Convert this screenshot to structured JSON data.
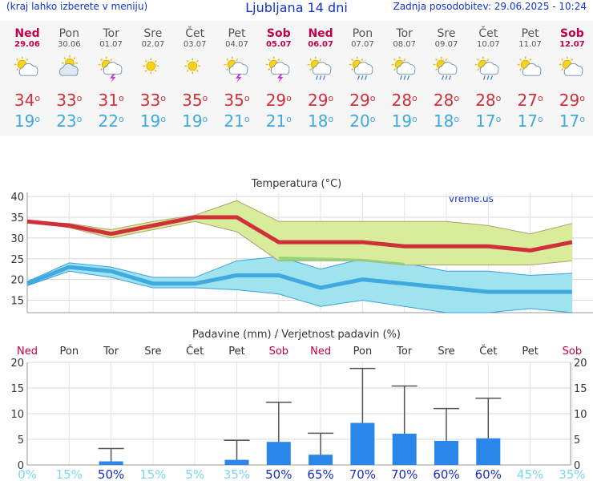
{
  "header": {
    "menu_hint": "(kraj lahko izberete v meniju)",
    "title": "Ljubljana 14 dni",
    "updated": "Zadnja posodobitev: 29.06.2025 - 10:24"
  },
  "days": [
    {
      "name": "Ned",
      "date": "29.06",
      "weekend": true,
      "icon": "sun-cloud-icon",
      "max": "34",
      "min": "19"
    },
    {
      "name": "Pon",
      "date": "30.06",
      "weekend": false,
      "icon": "cloudy-icon",
      "max": "33",
      "min": "23"
    },
    {
      "name": "Tor",
      "date": "01.07",
      "weekend": false,
      "icon": "sun-cloud-storm-icon",
      "max": "31",
      "min": "22"
    },
    {
      "name": "Sre",
      "date": "02.07",
      "weekend": false,
      "icon": "sun-icon",
      "max": "33",
      "min": "19"
    },
    {
      "name": "Čet",
      "date": "03.07",
      "weekend": false,
      "icon": "sun-icon",
      "max": "35",
      "min": "19"
    },
    {
      "name": "Pet",
      "date": "04.07",
      "weekend": false,
      "icon": "sun-cloud-storm-icon",
      "max": "35",
      "min": "21"
    },
    {
      "name": "Sob",
      "date": "05.07",
      "weekend": true,
      "icon": "sun-cloud-storm-icon",
      "max": "29",
      "min": "21"
    },
    {
      "name": "Ned",
      "date": "06.07",
      "weekend": true,
      "icon": "sun-cloud-rain-icon",
      "max": "29",
      "min": "18"
    },
    {
      "name": "Pon",
      "date": "07.07",
      "weekend": false,
      "icon": "sun-cloud-rain-icon",
      "max": "29",
      "min": "20"
    },
    {
      "name": "Tor",
      "date": "08.07",
      "weekend": false,
      "icon": "sun-cloud-rain-icon",
      "max": "28",
      "min": "19"
    },
    {
      "name": "Sre",
      "date": "09.07",
      "weekend": false,
      "icon": "sun-cloud-rain-icon",
      "max": "28",
      "min": "18"
    },
    {
      "name": "Čet",
      "date": "10.07",
      "weekend": false,
      "icon": "sun-cloud-rain-icon",
      "max": "28",
      "min": "17"
    },
    {
      "name": "Pet",
      "date": "11.07",
      "weekend": false,
      "icon": "sun-cloud-icon",
      "max": "27",
      "min": "17"
    },
    {
      "name": "Sob",
      "date": "12.07",
      "weekend": true,
      "icon": "sun-cloud-icon",
      "max": "29",
      "min": "17"
    }
  ],
  "colors": {
    "weekend": "#c0004a",
    "max": "#d0303a",
    "min": "#3fa9e0",
    "max_band": "#d8ec9a",
    "min_band": "#9fe3ef",
    "overlap": "#8fd07a",
    "precip_bar": "#2a86e8",
    "prob": "#1a2fbf",
    "prob_low": "#7fd6f0"
  },
  "chart_data": [
    {
      "type": "line",
      "title": "Temperatura (°C)",
      "watermark": "vreme.us",
      "ylim": [
        12,
        41
      ],
      "yticks": [
        15,
        20,
        25,
        30,
        35,
        40
      ],
      "grid": true,
      "x": [
        "29.06",
        "30.06",
        "01.07",
        "02.07",
        "03.07",
        "04.07",
        "05.07",
        "06.07",
        "07.07",
        "08.07",
        "09.07",
        "10.07",
        "11.07",
        "12.07"
      ],
      "series": [
        {
          "name": "max",
          "values": [
            34,
            33,
            31,
            33,
            35,
            35,
            29,
            29,
            29,
            28,
            28,
            28,
            27,
            29
          ],
          "band_low": [
            34,
            32.5,
            30,
            32,
            34,
            31.5,
            24.5,
            24.5,
            24.5,
            23.5,
            23.5,
            23.5,
            23.5,
            24.5
          ],
          "band_high": [
            34,
            33.5,
            32,
            34,
            35.5,
            39,
            34,
            34,
            34,
            34,
            34,
            33,
            31,
            33.5
          ]
        },
        {
          "name": "min",
          "values": [
            19,
            23,
            22,
            19,
            19,
            21,
            21,
            18,
            20,
            19,
            18,
            17,
            17,
            17
          ],
          "band_low": [
            18.5,
            22,
            20.5,
            18,
            18,
            17.5,
            16.5,
            13.5,
            15,
            13.5,
            12,
            12,
            13,
            12
          ],
          "band_high": [
            19.5,
            24,
            23,
            20.5,
            20.5,
            24.5,
            25.5,
            22.5,
            25,
            24,
            22,
            22,
            21,
            21.5
          ]
        }
      ]
    },
    {
      "type": "bar",
      "title": "Padavine (mm) / Verjetnost padavin (%)",
      "ylim": [
        0,
        20
      ],
      "yticks": [
        0,
        5,
        10,
        15,
        20
      ],
      "grid": true,
      "categories": [
        "Ned",
        "Pon",
        "Tor",
        "Sre",
        "Čet",
        "Pet",
        "Sob",
        "Ned",
        "Pon",
        "Tor",
        "Sre",
        "Čet",
        "Pet",
        "Sob"
      ],
      "weekend": [
        true,
        false,
        false,
        false,
        false,
        false,
        true,
        true,
        false,
        false,
        false,
        false,
        false,
        true
      ],
      "values": [
        0,
        0,
        0.7,
        0,
        0,
        1,
        4.5,
        2,
        8.2,
        6.1,
        4.7,
        5.2,
        0,
        0
      ],
      "error_high": [
        0,
        0,
        3.2,
        0,
        0,
        4.8,
        12.2,
        6.2,
        18.8,
        15.4,
        11,
        13,
        0,
        0
      ],
      "probability": [
        "0%",
        "15%",
        "50%",
        "15%",
        "5%",
        "35%",
        "50%",
        "65%",
        "70%",
        "70%",
        "60%",
        "60%",
        "45%",
        "35%"
      ],
      "probability_values": [
        0,
        15,
        50,
        15,
        5,
        35,
        50,
        65,
        70,
        70,
        60,
        60,
        45,
        35
      ]
    }
  ]
}
